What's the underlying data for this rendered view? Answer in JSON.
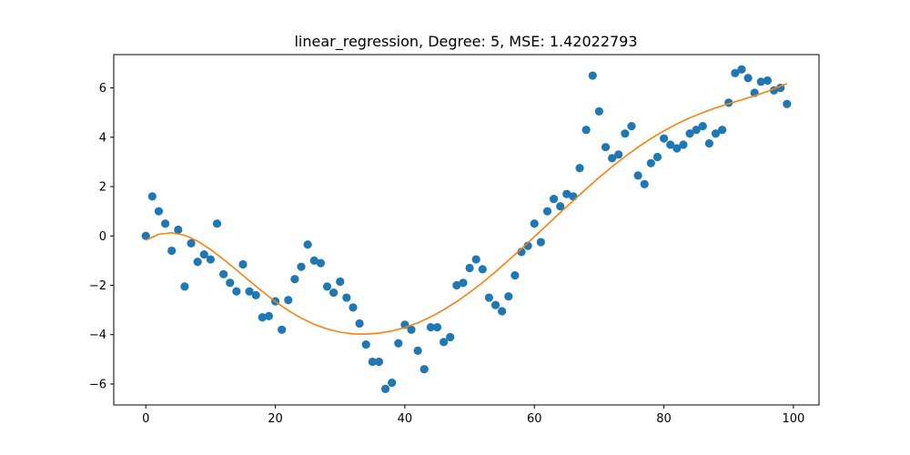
{
  "chart_data": {
    "type": "scatter",
    "title": "linear_regression, Degree: 5, MSE: 1.42022793",
    "xlabel": "",
    "ylabel": "",
    "xlim": [
      -4.95,
      103.95
    ],
    "ylim": [
      -6.85,
      7.35
    ],
    "x_ticks": [
      0,
      20,
      40,
      60,
      80,
      100
    ],
    "y_ticks": [
      -6,
      -4,
      -2,
      0,
      2,
      4,
      6
    ],
    "x_tick_labels": [
      "0",
      "20",
      "40",
      "60",
      "80",
      "100"
    ],
    "y_tick_labels": [
      "−6",
      "−4",
      "−2",
      "0",
      "2",
      "4",
      "6"
    ],
    "grid": false,
    "colors": {
      "scatter": "#1f77b4",
      "fit": "#ff7f0e"
    },
    "series": [
      {
        "kind": "scatter",
        "x": [
          0,
          1,
          2,
          3,
          4,
          5,
          6,
          7,
          8,
          9,
          10,
          11,
          12,
          13,
          14,
          15,
          16,
          17,
          18,
          19,
          20,
          21,
          22,
          23,
          24,
          25,
          26,
          27,
          28,
          29,
          30,
          31,
          32,
          33,
          34,
          35,
          36,
          37,
          38,
          39,
          40,
          41,
          42,
          43,
          44,
          45,
          46,
          47,
          48,
          49,
          50,
          51,
          52,
          53,
          54,
          55,
          56,
          57,
          58,
          59,
          60,
          61,
          62,
          63,
          64,
          65,
          66,
          67,
          68,
          69,
          70,
          71,
          72,
          73,
          74,
          75,
          76,
          77,
          78,
          79,
          80,
          81,
          82,
          83,
          84,
          85,
          86,
          87,
          88,
          89,
          90,
          91,
          92,
          93,
          94,
          95,
          96,
          97,
          98,
          99
        ],
        "y": [
          0.0,
          1.6,
          1.0,
          0.5,
          -0.6,
          0.25,
          -2.05,
          -0.3,
          -1.05,
          -0.75,
          -0.95,
          0.5,
          -1.55,
          -1.9,
          -2.25,
          -1.15,
          -2.25,
          -2.4,
          -3.3,
          -3.25,
          -2.65,
          -3.8,
          -2.6,
          -1.75,
          -1.25,
          -0.35,
          -1.0,
          -1.1,
          -2.05,
          -2.3,
          -1.85,
          -2.5,
          -2.9,
          -3.55,
          -4.4,
          -5.1,
          -5.1,
          -6.2,
          -5.95,
          -4.35,
          -3.6,
          -3.8,
          -4.65,
          -5.4,
          -3.7,
          -3.7,
          -4.3,
          -4.1,
          -2.0,
          -1.9,
          -1.3,
          -0.95,
          -1.35,
          -2.5,
          -2.8,
          -3.05,
          -2.45,
          -1.6,
          -0.65,
          -0.4,
          0.5,
          -0.25,
          1.0,
          1.5,
          1.2,
          1.7,
          1.6,
          2.75,
          4.3,
          6.5,
          5.05,
          3.6,
          3.15,
          3.3,
          4.15,
          4.45,
          2.45,
          2.1,
          2.95,
          3.2,
          3.95,
          3.7,
          3.55,
          3.7,
          4.15,
          4.3,
          4.45,
          3.75,
          4.15,
          4.3,
          5.4,
          6.6,
          6.75,
          6.4,
          5.8,
          6.25,
          6.3,
          5.9,
          6.0,
          5.35
        ]
      },
      {
        "kind": "line",
        "x": [
          0,
          2,
          4,
          6,
          8,
          10,
          12,
          14,
          16,
          18,
          20,
          22,
          24,
          26,
          28,
          30,
          32,
          34,
          36,
          38,
          40,
          42,
          44,
          46,
          48,
          50,
          52,
          54,
          56,
          58,
          60,
          62,
          64,
          66,
          68,
          70,
          72,
          74,
          76,
          78,
          80,
          82,
          84,
          86,
          88,
          90,
          92,
          94,
          96,
          98,
          99
        ],
        "y": [
          -0.17,
          0.07,
          0.13,
          0.03,
          -0.21,
          -0.55,
          -0.95,
          -1.38,
          -1.82,
          -2.25,
          -2.66,
          -3.02,
          -3.33,
          -3.58,
          -3.77,
          -3.9,
          -3.97,
          -3.98,
          -3.94,
          -3.85,
          -3.71,
          -3.52,
          -3.28,
          -2.99,
          -2.66,
          -2.29,
          -1.89,
          -1.45,
          -0.99,
          -0.52,
          -0.03,
          0.46,
          0.95,
          1.43,
          1.91,
          2.37,
          2.81,
          3.22,
          3.6,
          3.95,
          4.26,
          4.54,
          4.79,
          5.0,
          5.19,
          5.36,
          5.52,
          5.68,
          5.86,
          6.07,
          6.18
        ]
      }
    ]
  }
}
